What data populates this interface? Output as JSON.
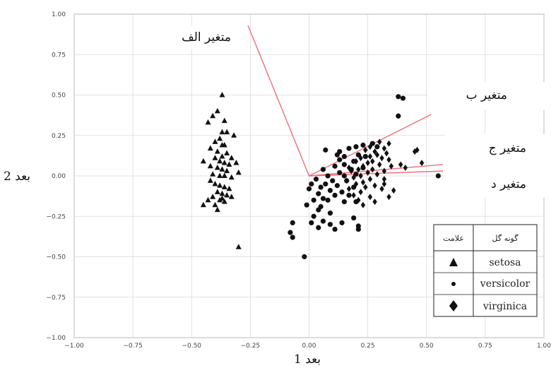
{
  "chart_data": {
    "type": "scatter",
    "xlabel": "بعد 1",
    "ylabel": "بعد 2",
    "xlim": [
      -1.0,
      1.0
    ],
    "ylim": [
      -1.0,
      1.0
    ],
    "grid": true,
    "xticks": [
      "−1.00",
      "−0.75",
      "−0.50",
      "−0.25",
      "0.00",
      "0.25",
      "0.50",
      "0.75",
      "1.00"
    ],
    "yticks": [
      "1.00",
      "0.75",
      "0.50",
      "0.25",
      "0.00",
      "−0.25",
      "−0.50",
      "−0.75",
      "−1.00"
    ],
    "loading_color": "#f06b78",
    "loadings": [
      {
        "name": "متغیر الف",
        "x": -0.26,
        "y": 0.93
      },
      {
        "name": "متغیر ب",
        "x": 0.52,
        "y": 0.38
      },
      {
        "name": "متغیر ج",
        "x": 0.57,
        "y": 0.07
      },
      {
        "name": "متغیر د",
        "x": 0.57,
        "y": 0.03
      }
    ],
    "legend": {
      "position": "lower-right",
      "header_species": "گونه گل",
      "header_marker": "علامت",
      "entries": [
        {
          "name": "setosa",
          "marker": "triangle"
        },
        {
          "name": "versicolor",
          "marker": "circle"
        },
        {
          "name": "virginica",
          "marker": "diamond"
        }
      ]
    },
    "series": [
      {
        "name": "setosa",
        "marker": "triangle",
        "points": [
          [
            -0.37,
            0.5
          ],
          [
            -0.39,
            0.4
          ],
          [
            -0.41,
            0.37
          ],
          [
            -0.43,
            0.33
          ],
          [
            -0.36,
            0.34
          ],
          [
            -0.37,
            0.27
          ],
          [
            -0.35,
            0.27
          ],
          [
            -0.32,
            0.25
          ],
          [
            -0.38,
            0.23
          ],
          [
            -0.4,
            0.21
          ],
          [
            -0.37,
            0.19
          ],
          [
            -0.36,
            0.19
          ],
          [
            -0.42,
            0.17
          ],
          [
            -0.39,
            0.15
          ],
          [
            -0.35,
            0.14
          ],
          [
            -0.37,
            0.12
          ],
          [
            -0.4,
            0.11
          ],
          [
            -0.33,
            0.11
          ],
          [
            -0.45,
            0.09
          ],
          [
            -0.38,
            0.09
          ],
          [
            -0.36,
            0.08
          ],
          [
            -0.34,
            0.07
          ],
          [
            -0.31,
            0.08
          ],
          [
            -0.42,
            0.06
          ],
          [
            -0.39,
            0.05
          ],
          [
            -0.37,
            0.04
          ],
          [
            -0.35,
            0.03
          ],
          [
            -0.3,
            0.02
          ],
          [
            -0.41,
            0.01
          ],
          [
            -0.38,
            0.0
          ],
          [
            -0.36,
            0.0
          ],
          [
            -0.33,
            -0.01
          ],
          [
            -0.42,
            -0.03
          ],
          [
            -0.4,
            -0.05
          ],
          [
            -0.38,
            -0.06
          ],
          [
            -0.36,
            -0.07
          ],
          [
            -0.34,
            -0.08
          ],
          [
            -0.39,
            -0.1
          ],
          [
            -0.37,
            -0.11
          ],
          [
            -0.35,
            -0.12
          ],
          [
            -0.41,
            -0.13
          ],
          [
            -0.43,
            -0.15
          ],
          [
            -0.38,
            -0.15
          ],
          [
            -0.36,
            -0.16
          ],
          [
            -0.45,
            -0.18
          ],
          [
            -0.4,
            -0.18
          ],
          [
            -0.33,
            -0.13
          ],
          [
            -0.39,
            -0.21
          ],
          [
            -0.37,
            -0.14
          ],
          [
            -0.3,
            -0.44
          ]
        ]
      },
      {
        "name": "versicolor",
        "marker": "circle",
        "points": [
          [
            0.38,
            0.49
          ],
          [
            0.4,
            0.48
          ],
          [
            0.38,
            0.37
          ],
          [
            0.27,
            0.2
          ],
          [
            0.23,
            0.19
          ],
          [
            0.2,
            0.18
          ],
          [
            0.29,
            0.18
          ],
          [
            0.17,
            0.17
          ],
          [
            0.07,
            0.16
          ],
          [
            0.13,
            0.15
          ],
          [
            0.21,
            0.13
          ],
          [
            0.12,
            0.13
          ],
          [
            0.15,
            0.12
          ],
          [
            0.24,
            0.12
          ],
          [
            0.13,
            0.1
          ],
          [
            0.19,
            0.09
          ],
          [
            0.15,
            0.07
          ],
          [
            0.11,
            0.06
          ],
          [
            0.23,
            0.05
          ],
          [
            0.06,
            0.04
          ],
          [
            0.18,
            0.04
          ],
          [
            0.13,
            0.02
          ],
          [
            0.2,
            0.01
          ],
          [
            0.08,
            0.0
          ],
          [
            0.15,
            0.0
          ],
          [
            0.03,
            -0.02
          ],
          [
            0.1,
            -0.03
          ],
          [
            0.16,
            -0.03
          ],
          [
            0.01,
            -0.05
          ],
          [
            0.07,
            -0.05
          ],
          [
            0.12,
            -0.06
          ],
          [
            0.05,
            -0.07
          ],
          [
            0.19,
            -0.07
          ],
          [
            0.0,
            -0.08
          ],
          [
            0.09,
            -0.09
          ],
          [
            0.14,
            -0.1
          ],
          [
            0.04,
            -0.11
          ],
          [
            0.11,
            -0.12
          ],
          [
            0.17,
            -0.12
          ],
          [
            0.06,
            -0.14
          ],
          [
            0.02,
            -0.15
          ],
          [
            0.08,
            -0.15
          ],
          [
            0.15,
            -0.16
          ],
          [
            0.2,
            -0.16
          ],
          [
            -0.01,
            -0.18
          ],
          [
            0.05,
            -0.19
          ],
          [
            0.04,
            -0.21
          ],
          [
            0.09,
            -0.23
          ],
          [
            0.02,
            -0.25
          ],
          [
            0.19,
            -0.26
          ],
          [
            0.06,
            -0.28
          ],
          [
            0.01,
            -0.29
          ],
          [
            0.14,
            -0.29
          ],
          [
            0.09,
            -0.3
          ],
          [
            0.21,
            -0.31
          ],
          [
            0.04,
            -0.32
          ],
          [
            0.11,
            -0.33
          ],
          [
            -0.07,
            -0.29
          ],
          [
            -0.08,
            -0.35
          ],
          [
            -0.07,
            -0.38
          ],
          [
            -0.02,
            -0.5
          ],
          [
            0.21,
            -0.33
          ],
          [
            0.55,
            0.0
          ]
        ]
      },
      {
        "name": "virginica",
        "marker": "diamond",
        "points": [
          [
            0.3,
            0.21
          ],
          [
            0.34,
            0.2
          ],
          [
            0.26,
            0.18
          ],
          [
            0.32,
            0.17
          ],
          [
            0.24,
            0.16
          ],
          [
            0.46,
            0.16
          ],
          [
            0.45,
            0.15
          ],
          [
            0.28,
            0.15
          ],
          [
            0.33,
            0.14
          ],
          [
            0.29,
            0.13
          ],
          [
            0.26,
            0.12
          ],
          [
            0.31,
            0.11
          ],
          [
            0.22,
            0.11
          ],
          [
            0.34,
            0.1
          ],
          [
            0.27,
            0.09
          ],
          [
            0.48,
            0.08
          ],
          [
            0.2,
            0.09
          ],
          [
            0.25,
            0.08
          ],
          [
            0.3,
            0.07
          ],
          [
            0.39,
            0.07
          ],
          [
            0.23,
            0.06
          ],
          [
            0.35,
            0.06
          ],
          [
            0.17,
            0.05
          ],
          [
            0.41,
            0.05
          ],
          [
            0.27,
            0.04
          ],
          [
            0.21,
            0.04
          ],
          [
            0.32,
            0.03
          ],
          [
            0.18,
            0.03
          ],
          [
            0.25,
            0.02
          ],
          [
            0.29,
            0.01
          ],
          [
            0.22,
            0.0
          ],
          [
            0.19,
            -0.01
          ],
          [
            0.26,
            -0.02
          ],
          [
            0.32,
            -0.02
          ],
          [
            0.16,
            -0.03
          ],
          [
            0.23,
            -0.04
          ],
          [
            0.2,
            -0.05
          ],
          [
            0.28,
            -0.06
          ],
          [
            0.24,
            -0.07
          ],
          [
            0.17,
            -0.08
          ],
          [
            0.31,
            -0.08
          ],
          [
            0.22,
            -0.1
          ],
          [
            0.19,
            -0.12
          ],
          [
            0.26,
            -0.13
          ],
          [
            0.21,
            -0.15
          ],
          [
            0.28,
            -0.16
          ],
          [
            0.34,
            -0.13
          ],
          [
            0.23,
            -0.18
          ],
          [
            0.32,
            -0.05
          ],
          [
            0.36,
            -0.09
          ]
        ]
      }
    ]
  }
}
